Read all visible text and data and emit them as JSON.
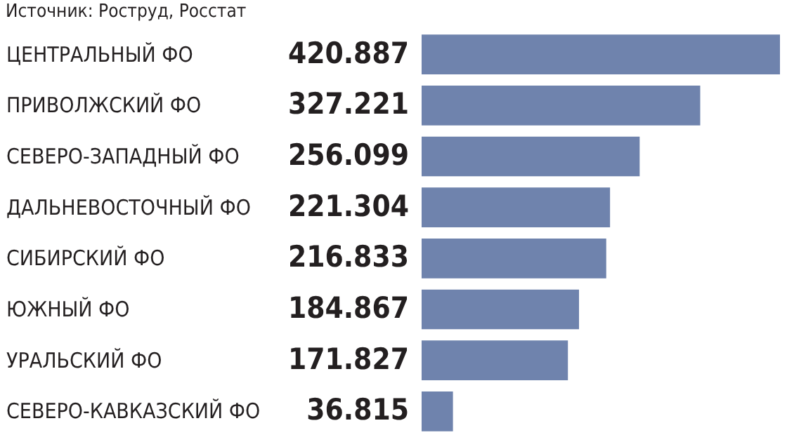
{
  "chart_data": {
    "type": "bar",
    "orientation": "horizontal",
    "annotations": [
      "Источник: Роструд, Росстат"
    ],
    "categories": [
      "ЦЕНТРАЛЬНЫЙ ФО",
      "ПРИВОЛЖСКИЙ ФО",
      "СЕВЕРО-ЗАПАДНЫЙ ФО",
      "ДАЛЬНЕВОСТОЧНЫЙ ФО",
      "СИБИРСКИЙ ФО",
      "ЮЖНЫЙ ФО",
      "УРАЛЬСКИЙ ФО",
      "СЕВЕРО-КАВКАЗСКИЙ ФО"
    ],
    "values": [
      420887,
      327221,
      256099,
      221304,
      216833,
      184867,
      171827,
      36815
    ],
    "value_labels": [
      "420.887",
      "327.221",
      "256.099",
      "221.304",
      "216.833",
      "184.867",
      "171.827",
      "36.815"
    ],
    "color": "#6f83ad"
  }
}
